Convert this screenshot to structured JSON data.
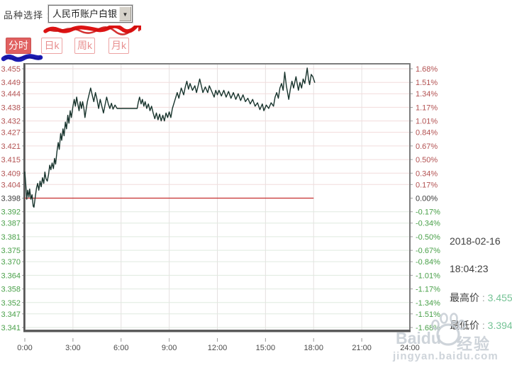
{
  "header": {
    "label": "品种选择 :",
    "dropdown_value": "人民币账户白银"
  },
  "tabs": [
    {
      "label": "分时",
      "active": true
    },
    {
      "label": "日k",
      "active": false
    },
    {
      "label": "周k",
      "active": false
    },
    {
      "label": "月k",
      "active": false
    }
  ],
  "info_panel": {
    "date": "2018-02-16",
    "time": "18:04:23",
    "high_label": "最高价",
    "high_sep": " : ",
    "high_value": "3.455",
    "low_label": "最低价",
    "low_sep": " : ",
    "low_value": "3.394"
  },
  "watermark": {
    "brand": "Baidu",
    "brand_cn": "经验",
    "url": "jingyan.baidu.com"
  },
  "colors": {
    "up_red": "#b35252",
    "down_green": "#49a049",
    "neutral": "#3a3a3a",
    "line": "#17332c",
    "baseline_red": "#c52f2f",
    "grid_pink": "#f2dcdc",
    "grid_green": "#dfeadf",
    "grid_vertical": "#e5e0e0",
    "border": "#7d7d7d",
    "border_dark": "#565656",
    "tick": "#9a9a9a",
    "x_label": "#4a4a4a",
    "active_tab": "#e06060",
    "value_green": "#76c396"
  },
  "chart_data": {
    "type": "line",
    "title": "人民币账户白银 分时",
    "xlabel": "",
    "ylabel": "",
    "x_range": [
      0,
      24
    ],
    "y_range": [
      3.341,
      3.455
    ],
    "grid": true,
    "legend_position": "none",
    "baseline": 3.398,
    "baseline_end_hour": 18.0,
    "x_ticks": [
      "0:00",
      "3:00",
      "6:00",
      "9:00",
      "12:00",
      "15:00",
      "18:00",
      "21:00",
      "24:00"
    ],
    "y_left_ticks": [
      "3.455",
      "3.449",
      "3.444",
      "3.438",
      "3.432",
      "3.427",
      "3.421",
      "3.415",
      "3.409",
      "3.404",
      "3.398",
      "3.392",
      "3.387",
      "3.381",
      "3.375",
      "3.370",
      "3.364",
      "3.358",
      "3.352",
      "3.347",
      "3.341"
    ],
    "y_right_ticks": [
      "1.68%",
      "1.51%",
      "1.34%",
      "1.17%",
      "1.01%",
      "0.84%",
      "0.67%",
      "0.50%",
      "0.34%",
      "0.17%",
      "0.00%",
      "-0.17%",
      "-0.34%",
      "-0.50%",
      "-0.67%",
      "-0.84%",
      "-1.01%",
      "-1.17%",
      "-1.34%",
      "-1.51%",
      "-1.68%"
    ],
    "series": [
      {
        "name": "人民币账户白银",
        "points": [
          [
            0,
            3.4095
          ],
          [
            0.07,
            3.403
          ],
          [
            0.12,
            3.3975
          ],
          [
            0.18,
            3.4015
          ],
          [
            0.25,
            3.3985
          ],
          [
            0.3,
            3.402
          ],
          [
            0.38,
            3.3975
          ],
          [
            0.45,
            3.3995
          ],
          [
            0.52,
            3.3945
          ],
          [
            0.57,
            3.394
          ],
          [
            0.65,
            3.3985
          ],
          [
            0.73,
            3.4025
          ],
          [
            0.8,
            3.4045
          ],
          [
            0.87,
            3.4015
          ],
          [
            0.95,
            3.4055
          ],
          [
            1.02,
            3.403
          ],
          [
            1.1,
            3.407
          ],
          [
            1.18,
            3.4045
          ],
          [
            1.25,
            3.4095
          ],
          [
            1.32,
            3.4065
          ],
          [
            1.4,
            3.4055
          ],
          [
            1.48,
            3.4085
          ],
          [
            1.55,
            3.4125
          ],
          [
            1.62,
            3.4105
          ],
          [
            1.7,
            3.4135
          ],
          [
            1.78,
            3.411
          ],
          [
            1.85,
            3.4155
          ],
          [
            1.92,
            3.413
          ],
          [
            2,
            3.4185
          ],
          [
            2.08,
            3.4225
          ],
          [
            2.15,
            3.4195
          ],
          [
            2.23,
            3.4265
          ],
          [
            2.3,
            3.4235
          ],
          [
            2.38,
            3.4285
          ],
          [
            2.45,
            3.4255
          ],
          [
            2.53,
            3.4315
          ],
          [
            2.6,
            3.4285
          ],
          [
            2.68,
            3.4345
          ],
          [
            2.75,
            3.431
          ],
          [
            2.83,
            3.4365
          ],
          [
            2.9,
            3.4335
          ],
          [
            3,
            3.4385
          ],
          [
            3.08,
            3.4415
          ],
          [
            3.15,
            3.4385
          ],
          [
            3.23,
            3.4425
          ],
          [
            3.3,
            3.4395
          ],
          [
            3.38,
            3.4365
          ],
          [
            3.45,
            3.4405
          ],
          [
            3.53,
            3.4375
          ],
          [
            3.6,
            3.4405
          ],
          [
            3.68,
            3.4375
          ],
          [
            3.75,
            3.4335
          ],
          [
            3.83,
            3.4375
          ],
          [
            3.9,
            3.4405
          ],
          [
            4,
            3.4435
          ],
          [
            4.1,
            3.4465
          ],
          [
            4.2,
            3.4435
          ],
          [
            4.3,
            3.4405
          ],
          [
            4.4,
            3.4445
          ],
          [
            4.5,
            3.4415
          ],
          [
            4.6,
            3.4375
          ],
          [
            4.7,
            3.4415
          ],
          [
            4.8,
            3.4385
          ],
          [
            4.9,
            3.4355
          ],
          [
            5,
            3.439
          ],
          [
            5.1,
            3.4425
          ],
          [
            5.2,
            3.4395
          ],
          [
            5.3,
            3.4375
          ],
          [
            5.4,
            3.4398
          ],
          [
            5.5,
            3.4372
          ],
          [
            5.62,
            3.439
          ],
          [
            5.75,
            3.4375
          ],
          [
            6,
            3.4375
          ],
          [
            7,
            3.4375
          ],
          [
            7.08,
            3.4405
          ],
          [
            7.15,
            3.4425
          ],
          [
            7.25,
            3.4395
          ],
          [
            7.33,
            3.4415
          ],
          [
            7.42,
            3.4385
          ],
          [
            7.5,
            3.4405
          ],
          [
            7.6,
            3.4375
          ],
          [
            7.7,
            3.4395
          ],
          [
            7.8,
            3.4365
          ],
          [
            7.9,
            3.4385
          ],
          [
            8,
            3.4355
          ],
          [
            8.1,
            3.433
          ],
          [
            8.2,
            3.4355
          ],
          [
            8.3,
            3.4325
          ],
          [
            8.4,
            3.435
          ],
          [
            8.5,
            3.432
          ],
          [
            8.6,
            3.4345
          ],
          [
            8.7,
            3.432
          ],
          [
            8.8,
            3.4355
          ],
          [
            8.9,
            3.4335
          ],
          [
            9,
            3.436
          ],
          [
            9.1,
            3.4335
          ],
          [
            9.2,
            3.4375
          ],
          [
            9.35,
            3.441
          ],
          [
            9.5,
            3.4445
          ],
          [
            9.6,
            3.442
          ],
          [
            9.75,
            3.4465
          ],
          [
            9.9,
            3.4435
          ],
          [
            10,
            3.447
          ],
          [
            10.1,
            3.4495
          ],
          [
            10.2,
            3.446
          ],
          [
            10.3,
            3.4485
          ],
          [
            10.45,
            3.4455
          ],
          [
            10.6,
            3.4475
          ],
          [
            10.7,
            3.4445
          ],
          [
            10.8,
            3.4475
          ],
          [
            10.9,
            3.4505
          ],
          [
            11,
            3.4475
          ],
          [
            11.1,
            3.4445
          ],
          [
            11.25,
            3.447
          ],
          [
            11.4,
            3.4445
          ],
          [
            11.5,
            3.4475
          ],
          [
            11.65,
            3.445
          ],
          [
            11.8,
            3.4425
          ],
          [
            11.9,
            3.4455
          ],
          [
            12,
            3.4435
          ],
          [
            12.1,
            3.4455
          ],
          [
            12.25,
            3.443
          ],
          [
            12.4,
            3.4455
          ],
          [
            12.55,
            3.4425
          ],
          [
            12.7,
            3.445
          ],
          [
            12.85,
            3.442
          ],
          [
            13,
            3.4445
          ],
          [
            13.15,
            3.4415
          ],
          [
            13.3,
            3.444
          ],
          [
            13.45,
            3.441
          ],
          [
            13.6,
            3.4435
          ],
          [
            13.75,
            3.4405
          ],
          [
            13.9,
            3.442
          ],
          [
            14.05,
            3.4395
          ],
          [
            14.2,
            3.4415
          ],
          [
            14.35,
            3.4385
          ],
          [
            14.5,
            3.44
          ],
          [
            14.65,
            3.437
          ],
          [
            14.8,
            3.4395
          ],
          [
            14.9,
            3.4365
          ],
          [
            15.05,
            3.439
          ],
          [
            15.2,
            3.4375
          ],
          [
            15.35,
            3.44
          ],
          [
            15.5,
            3.4385
          ],
          [
            15.6,
            3.4425
          ],
          [
            15.7,
            3.4445
          ],
          [
            15.8,
            3.442
          ],
          [
            15.9,
            3.4465
          ],
          [
            16,
            3.4485
          ],
          [
            16.1,
            3.4455
          ],
          [
            16.2,
            3.4535
          ],
          [
            16.3,
            3.4475
          ],
          [
            16.45,
            3.4415
          ],
          [
            16.55,
            3.446
          ],
          [
            16.65,
            3.4495
          ],
          [
            16.75,
            3.4465
          ],
          [
            16.9,
            3.4515
          ],
          [
            17,
            3.4475
          ],
          [
            17.05,
            3.4455
          ],
          [
            17.15,
            3.449
          ],
          [
            17.25,
            3.4465
          ],
          [
            17.35,
            3.4505
          ],
          [
            17.45,
            3.4485
          ],
          [
            17.55,
            3.453
          ],
          [
            17.6,
            3.4553
          ],
          [
            17.68,
            3.4505
          ],
          [
            17.75,
            3.448
          ],
          [
            17.85,
            3.4525
          ],
          [
            17.95,
            3.4515
          ],
          [
            18.07,
            3.449
          ]
        ]
      }
    ]
  }
}
